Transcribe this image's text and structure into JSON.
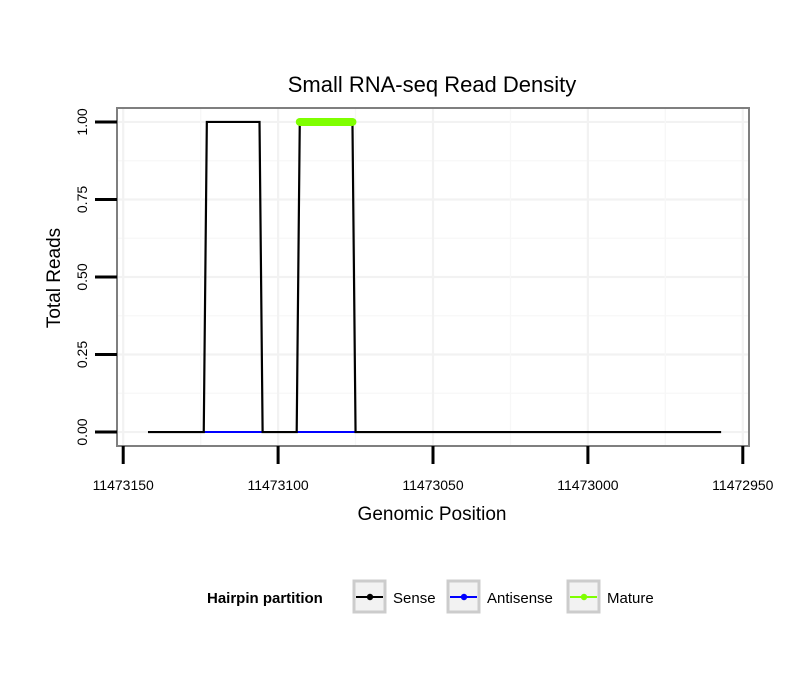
{
  "chart_data": {
    "type": "line",
    "title": "Small RNA-seq Read Density",
    "xlabel": "Genomic Position",
    "ylabel": "Total Reads",
    "x_reversed": true,
    "xlim": [
      11473152,
      11472948
    ],
    "ylim": [
      -0.045,
      1.045
    ],
    "x_ticks": [
      11473150,
      11473100,
      11473050,
      11473000,
      11472950
    ],
    "x_tick_labels": [
      "11473150",
      "11473100",
      "11473050",
      "11473000",
      "11472950"
    ],
    "y_ticks": [
      0,
      0.25,
      0.5,
      0.75,
      1.0
    ],
    "y_tick_labels": [
      "0.00",
      "0.25",
      "0.50",
      "0.75",
      "1.00"
    ],
    "grid": true,
    "series": [
      {
        "name": "Sense",
        "color": "#000000",
        "x": [
          11473142,
          11473124,
          11473123,
          11473106,
          11473105,
          11473094,
          11473093,
          11473076,
          11473075,
          11472957
        ],
        "y": [
          0,
          0,
          1,
          1,
          0,
          0,
          1,
          1,
          0,
          0
        ]
      },
      {
        "name": "Antisense",
        "color": "#0000ff",
        "x": [
          11473124,
          11473105,
          11473094,
          11473075
        ],
        "y": [
          0,
          0,
          0,
          0
        ],
        "segments": [
          [
            0,
            1
          ],
          [
            2,
            3
          ]
        ]
      },
      {
        "name": "Mature",
        "color": "#7fff00",
        "x": [
          11473093,
          11473076
        ],
        "y": [
          1,
          1
        ]
      }
    ],
    "legend": {
      "title": "Hairpin partition",
      "position": "bottom",
      "items": [
        {
          "label": "Sense",
          "color": "#000000"
        },
        {
          "label": "Antisense",
          "color": "#0000ff"
        },
        {
          "label": "Mature",
          "color": "#7fff00"
        }
      ]
    }
  }
}
